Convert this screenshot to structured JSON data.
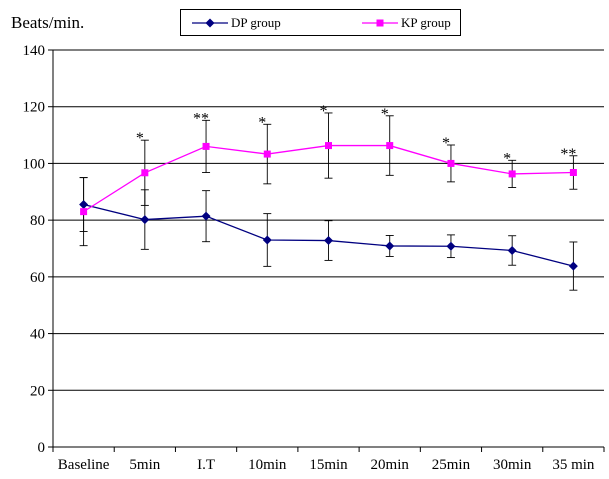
{
  "chart_data": {
    "type": "line",
    "ylabel": "Beats/min.",
    "xlabel": "",
    "title": "",
    "ylim": [
      0,
      140
    ],
    "yticks": [
      0,
      20,
      40,
      60,
      80,
      100,
      120,
      140
    ],
    "grid": "horizontal",
    "legend_position": "top-center",
    "categories": [
      "Baseline",
      "5min",
      "I.T",
      "10min",
      "15min",
      "20min",
      "25min",
      "30min",
      "35 min"
    ],
    "series": [
      {
        "name": "DP group",
        "color": "#000080",
        "marker": "diamond",
        "values": [
          85.5,
          80.2,
          81.4,
          73.0,
          72.8,
          70.9,
          70.8,
          69.3,
          63.8
        ],
        "error": [
          9.5,
          10.5,
          9.0,
          9.3,
          7.0,
          3.7,
          4.0,
          5.2,
          8.5
        ]
      },
      {
        "name": "KP group",
        "color": "#ff00ff",
        "marker": "square",
        "values": [
          83.0,
          96.7,
          106.0,
          103.3,
          106.3,
          106.3,
          100.0,
          96.3,
          96.8
        ],
        "error": [
          12.0,
          11.5,
          9.2,
          10.5,
          11.5,
          10.5,
          6.5,
          4.8,
          5.9
        ]
      }
    ],
    "annotations": [
      "",
      "*",
      "**",
      "*",
      "*",
      "*",
      "*",
      "*",
      "**"
    ]
  }
}
